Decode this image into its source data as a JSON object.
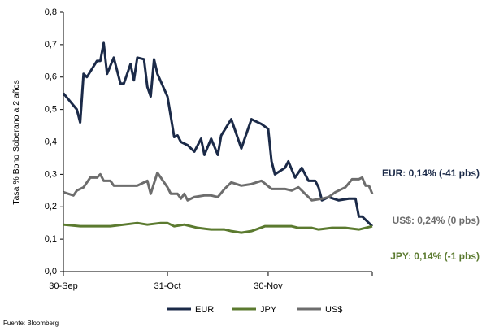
{
  "chart_data": {
    "type": "line",
    "y_label": "Tasa % Bono Soberano a 2 años",
    "source": "Fuente: Bloomberg",
    "xlim": [
      0,
      92
    ],
    "xticks": [
      {
        "value": 0,
        "label": "30-Sep"
      },
      {
        "value": 31,
        "label": "31-Oct"
      },
      {
        "value": 61,
        "label": "30-Nov"
      }
    ],
    "ylim": [
      0,
      0.8
    ],
    "yticks": [
      {
        "value": 0,
        "label": "0,0"
      },
      {
        "value": 0.1,
        "label": "0,1"
      },
      {
        "value": 0.2,
        "label": "0,2"
      },
      {
        "value": 0.3,
        "label": "0,3"
      },
      {
        "value": 0.4,
        "label": "0,4"
      },
      {
        "value": 0.5,
        "label": "0,5"
      },
      {
        "value": 0.6,
        "label": "0,6"
      },
      {
        "value": 0.7,
        "label": "0,7"
      },
      {
        "value": 0.8,
        "label": "0,8"
      }
    ],
    "grid": false,
    "legend": "bottom",
    "series": [
      {
        "name": "EUR",
        "color": "#1b2a48",
        "x": [
          0,
          4,
          5,
          6,
          7,
          10,
          11,
          12,
          13,
          15,
          17,
          18,
          20,
          21,
          22,
          24,
          25,
          26,
          27,
          28,
          31,
          33,
          34,
          35,
          37,
          39,
          41,
          42,
          44,
          46,
          47,
          50,
          53,
          56,
          59,
          61,
          62,
          63,
          66,
          67,
          69,
          71,
          73,
          75,
          76,
          77,
          79,
          82,
          85,
          87,
          88,
          89,
          90,
          92
        ],
        "values": [
          0.55,
          0.5,
          0.46,
          0.61,
          0.6,
          0.65,
          0.65,
          0.705,
          0.61,
          0.66,
          0.58,
          0.58,
          0.64,
          0.59,
          0.66,
          0.655,
          0.57,
          0.54,
          0.655,
          0.61,
          0.54,
          0.415,
          0.42,
          0.4,
          0.39,
          0.37,
          0.41,
          0.36,
          0.41,
          0.36,
          0.42,
          0.47,
          0.38,
          0.47,
          0.455,
          0.44,
          0.34,
          0.3,
          0.32,
          0.34,
          0.29,
          0.32,
          0.28,
          0.28,
          0.26,
          0.22,
          0.23,
          0.22,
          0.225,
          0.225,
          0.17,
          0.17,
          0.16,
          0.14
        ]
      },
      {
        "name": "JPY",
        "color": "#5b7a2f",
        "x": [
          0,
          5,
          10,
          14,
          18,
          22,
          25,
          29,
          31,
          33,
          36,
          40,
          44,
          48,
          50,
          53,
          56,
          60,
          64,
          68,
          70,
          74,
          76,
          80,
          84,
          88,
          92
        ],
        "values": [
          0.145,
          0.14,
          0.14,
          0.14,
          0.145,
          0.15,
          0.145,
          0.15,
          0.15,
          0.14,
          0.145,
          0.135,
          0.13,
          0.13,
          0.125,
          0.12,
          0.125,
          0.14,
          0.14,
          0.14,
          0.135,
          0.135,
          0.13,
          0.135,
          0.135,
          0.13,
          0.14
        ]
      },
      {
        "name": "US$",
        "color": "#6d6d6d",
        "x": [
          0,
          3,
          4,
          6,
          8,
          10,
          11,
          12,
          14,
          15,
          20,
          22,
          24,
          25,
          26,
          28,
          31,
          32,
          34,
          35,
          36,
          37,
          39,
          42,
          44,
          46,
          48,
          50,
          53,
          56,
          59,
          62,
          66,
          68,
          70,
          72,
          74,
          77,
          79,
          81,
          84,
          86,
          88,
          89,
          90,
          91,
          92
        ],
        "values": [
          0.245,
          0.235,
          0.25,
          0.26,
          0.29,
          0.29,
          0.3,
          0.28,
          0.28,
          0.265,
          0.265,
          0.265,
          0.275,
          0.28,
          0.24,
          0.305,
          0.26,
          0.24,
          0.24,
          0.225,
          0.24,
          0.22,
          0.23,
          0.235,
          0.235,
          0.23,
          0.255,
          0.275,
          0.265,
          0.27,
          0.28,
          0.255,
          0.255,
          0.25,
          0.26,
          0.24,
          0.22,
          0.225,
          0.23,
          0.245,
          0.26,
          0.285,
          0.285,
          0.29,
          0.265,
          0.265,
          0.24
        ]
      }
    ],
    "annotations": [
      {
        "text": "EUR: 0,14% (-41 pbs)",
        "color": "#1b2a48"
      },
      {
        "text": "US$: 0,24% (0 pbs)",
        "color": "#6d6d6d"
      },
      {
        "text": "JPY: 0,14% (-1 pbs)",
        "color": "#5b7a2f"
      }
    ]
  }
}
